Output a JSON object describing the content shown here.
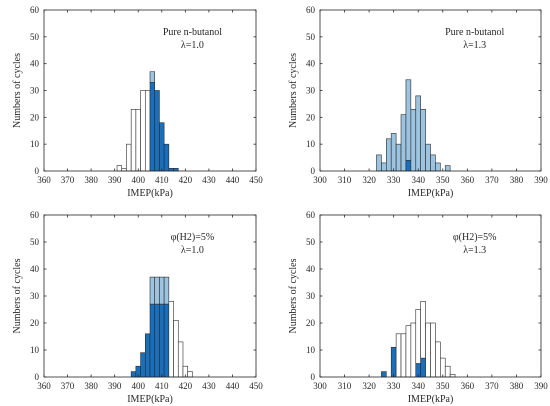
{
  "colors": {
    "dark": "#1a6fbd",
    "light": "#9cc3e0",
    "empty": "#ffffff",
    "edge": "#2b2b2b"
  },
  "chart_data": [
    {
      "type": "bar",
      "xlabel": "IMEP(kPa)",
      "ylabel": "Numbers of cycles",
      "annotation": [
        "Pure n-butanol",
        "λ=1.0"
      ],
      "xlim": [
        360,
        450
      ],
      "ylim": [
        0,
        60
      ],
      "xticks": [
        360,
        370,
        380,
        390,
        400,
        410,
        420,
        430,
        440,
        450
      ],
      "yticks": [
        0,
        10,
        20,
        30,
        40,
        50,
        60
      ],
      "bin_width": 2,
      "bins": [
        {
          "x": 392,
          "total": 2,
          "dark": 0,
          "light": 0
        },
        {
          "x": 394,
          "total": 1,
          "dark": 0,
          "light": 0
        },
        {
          "x": 396,
          "total": 10,
          "dark": 0,
          "light": 0
        },
        {
          "x": 398,
          "total": 23,
          "dark": 0,
          "light": 0
        },
        {
          "x": 400,
          "total": 23,
          "dark": 0,
          "light": 0
        },
        {
          "x": 402,
          "total": 30,
          "dark": 0,
          "light": 0
        },
        {
          "x": 404,
          "total": 30,
          "dark": 0,
          "light": 0
        },
        {
          "x": 406,
          "total": 37,
          "dark": 33,
          "light": 4
        },
        {
          "x": 408,
          "total": 30,
          "dark": 30,
          "light": 0
        },
        {
          "x": 410,
          "total": 18,
          "dark": 18,
          "light": 0
        },
        {
          "x": 412,
          "total": 10,
          "dark": 10,
          "light": 0
        },
        {
          "x": 414,
          "total": 1,
          "dark": 1,
          "light": 0
        },
        {
          "x": 416,
          "total": 1,
          "dark": 1,
          "light": 0
        }
      ]
    },
    {
      "type": "bar",
      "xlabel": "IMEP(kPa)",
      "ylabel": "Numbers of cycles",
      "annotation": [
        "Pure n-butanol",
        "λ=1.3"
      ],
      "xlim": [
        300,
        390
      ],
      "ylim": [
        0,
        60
      ],
      "xticks": [
        300,
        310,
        320,
        330,
        340,
        350,
        360,
        370,
        380,
        390
      ],
      "yticks": [
        0,
        10,
        20,
        30,
        40,
        50,
        60
      ],
      "bin_width": 2,
      "bins": [
        {
          "x": 324,
          "total": 6,
          "dark": 0,
          "light": 6
        },
        {
          "x": 326,
          "total": 3,
          "dark": 0,
          "light": 3
        },
        {
          "x": 328,
          "total": 12,
          "dark": 0,
          "light": 12
        },
        {
          "x": 330,
          "total": 14,
          "dark": 0,
          "light": 14
        },
        {
          "x": 332,
          "total": 10,
          "dark": 0,
          "light": 10
        },
        {
          "x": 334,
          "total": 21,
          "dark": 0,
          "light": 21
        },
        {
          "x": 336,
          "total": 34,
          "dark": 4,
          "light": 30
        },
        {
          "x": 338,
          "total": 23,
          "dark": 0,
          "light": 23
        },
        {
          "x": 340,
          "total": 28,
          "dark": 0,
          "light": 28
        },
        {
          "x": 342,
          "total": 23,
          "dark": 0,
          "light": 23
        },
        {
          "x": 344,
          "total": 10,
          "dark": 0,
          "light": 10
        },
        {
          "x": 346,
          "total": 6,
          "dark": 0,
          "light": 6
        },
        {
          "x": 348,
          "total": 3,
          "dark": 0,
          "light": 3
        },
        {
          "x": 350,
          "total": 0,
          "dark": 0,
          "light": 0
        },
        {
          "x": 352,
          "total": 2,
          "dark": 0,
          "light": 2
        }
      ]
    },
    {
      "type": "bar",
      "xlabel": "IMEP(kPa)",
      "ylabel": "Numbers of cycles",
      "annotation": [
        "φ(H2)=5%",
        "λ=1.0"
      ],
      "xlim": [
        360,
        450
      ],
      "ylim": [
        0,
        60
      ],
      "xticks": [
        360,
        370,
        380,
        390,
        400,
        410,
        420,
        430,
        440,
        450
      ],
      "yticks": [
        0,
        10,
        20,
        30,
        40,
        50,
        60
      ],
      "bin_width": 2,
      "bins": [
        {
          "x": 398,
          "total": 2,
          "dark": 2,
          "light": 0
        },
        {
          "x": 400,
          "total": 4,
          "dark": 4,
          "light": 0
        },
        {
          "x": 402,
          "total": 9,
          "dark": 9,
          "light": 0
        },
        {
          "x": 404,
          "total": 16,
          "dark": 16,
          "light": 0
        },
        {
          "x": 406,
          "total": 37,
          "dark": 27,
          "light": 10
        },
        {
          "x": 408,
          "total": 37,
          "dark": 27,
          "light": 10
        },
        {
          "x": 410,
          "total": 37,
          "dark": 27,
          "light": 10
        },
        {
          "x": 412,
          "total": 37,
          "dark": 27,
          "light": 10
        },
        {
          "x": 414,
          "total": 28,
          "dark": 0,
          "light": 0
        },
        {
          "x": 416,
          "total": 21,
          "dark": 0,
          "light": 0
        },
        {
          "x": 418,
          "total": 13,
          "dark": 0,
          "light": 0
        },
        {
          "x": 420,
          "total": 4,
          "dark": 0,
          "light": 0
        },
        {
          "x": 422,
          "total": 2,
          "dark": 0,
          "light": 0
        }
      ]
    },
    {
      "type": "bar",
      "xlabel": "IMEP(kPa)",
      "ylabel": "Numbers of cycles",
      "annotation": [
        "φ(H2)=5%",
        "λ=1.3"
      ],
      "xlim": [
        300,
        390
      ],
      "ylim": [
        0,
        60
      ],
      "xticks": [
        300,
        310,
        320,
        330,
        340,
        350,
        360,
        370,
        380,
        390
      ],
      "yticks": [
        0,
        10,
        20,
        30,
        40,
        50,
        60
      ],
      "bin_width": 2,
      "bins": [
        {
          "x": 326,
          "total": 2,
          "dark": 2,
          "light": 0
        },
        {
          "x": 328,
          "total": 0,
          "dark": 0,
          "light": 0
        },
        {
          "x": 330,
          "total": 11,
          "dark": 11,
          "light": 0
        },
        {
          "x": 332,
          "total": 16,
          "dark": 0,
          "light": 0
        },
        {
          "x": 334,
          "total": 16,
          "dark": 0,
          "light": 0
        },
        {
          "x": 336,
          "total": 19,
          "dark": 0,
          "light": 0
        },
        {
          "x": 338,
          "total": 20,
          "dark": 0,
          "light": 0
        },
        {
          "x": 340,
          "total": 25,
          "dark": 5,
          "light": 0
        },
        {
          "x": 342,
          "total": 28,
          "dark": 7,
          "light": 0
        },
        {
          "x": 344,
          "total": 20,
          "dark": 0,
          "light": 0
        },
        {
          "x": 346,
          "total": 20,
          "dark": 0,
          "light": 0
        },
        {
          "x": 348,
          "total": 13,
          "dark": 0,
          "light": 0
        },
        {
          "x": 350,
          "total": 7,
          "dark": 0,
          "light": 0
        },
        {
          "x": 352,
          "total": 4,
          "dark": 0,
          "light": 0
        },
        {
          "x": 354,
          "total": 1,
          "dark": 0,
          "light": 0
        }
      ]
    }
  ]
}
